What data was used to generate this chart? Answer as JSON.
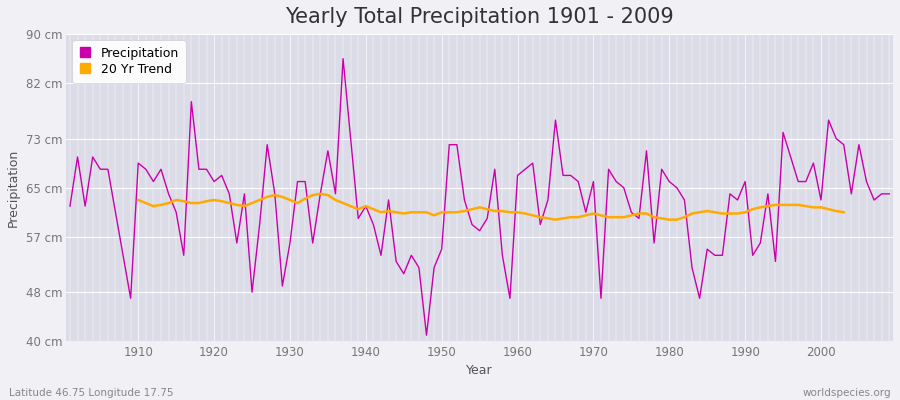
{
  "title": "Yearly Total Precipitation 1901 - 2009",
  "xlabel": "Year",
  "ylabel": "Precipitation",
  "subtitle_left": "Latitude 46.75 Longitude 17.75",
  "subtitle_right": "worldspecies.org",
  "years": [
    1901,
    1902,
    1903,
    1904,
    1905,
    1906,
    1907,
    1908,
    1909,
    1910,
    1911,
    1912,
    1913,
    1914,
    1915,
    1916,
    1917,
    1918,
    1919,
    1920,
    1921,
    1922,
    1923,
    1924,
    1925,
    1926,
    1927,
    1928,
    1929,
    1930,
    1931,
    1932,
    1933,
    1934,
    1935,
    1936,
    1937,
    1938,
    1939,
    1940,
    1941,
    1942,
    1943,
    1944,
    1945,
    1946,
    1947,
    1948,
    1949,
    1950,
    1951,
    1952,
    1953,
    1954,
    1955,
    1956,
    1957,
    1958,
    1959,
    1960,
    1961,
    1962,
    1963,
    1964,
    1965,
    1966,
    1967,
    1968,
    1969,
    1970,
    1971,
    1972,
    1973,
    1974,
    1975,
    1976,
    1977,
    1978,
    1979,
    1980,
    1981,
    1982,
    1983,
    1984,
    1985,
    1986,
    1987,
    1988,
    1989,
    1990,
    1991,
    1992,
    1993,
    1994,
    1995,
    1996,
    1997,
    1998,
    1999,
    2000,
    2001,
    2002,
    2003,
    2004,
    2005,
    2006,
    2007,
    2008,
    2009
  ],
  "precip": [
    62,
    70,
    62,
    70,
    68,
    68,
    61,
    54,
    47,
    69,
    68,
    66,
    68,
    64,
    61,
    54,
    79,
    68,
    68,
    66,
    67,
    64,
    56,
    64,
    48,
    59,
    72,
    64,
    49,
    56,
    66,
    66,
    56,
    64,
    71,
    64,
    86,
    73,
    60,
    62,
    59,
    54,
    63,
    53,
    51,
    54,
    52,
    41,
    52,
    55,
    72,
    72,
    63,
    59,
    58,
    60,
    68,
    54,
    47,
    67,
    68,
    69,
    59,
    63,
    76,
    67,
    67,
    66,
    61,
    66,
    47,
    68,
    66,
    65,
    61,
    60,
    71,
    56,
    68,
    66,
    65,
    63,
    52,
    47,
    55,
    54,
    54,
    64,
    63,
    66,
    54,
    56,
    64,
    53,
    74,
    70,
    66,
    66,
    69,
    63,
    76,
    73,
    72,
    64,
    72,
    66,
    63,
    64,
    64
  ],
  "trend": [
    null,
    null,
    null,
    null,
    null,
    null,
    null,
    null,
    null,
    63.0,
    62.5,
    62.0,
    62.2,
    62.5,
    63.0,
    62.8,
    62.5,
    62.5,
    62.8,
    63.0,
    62.8,
    62.5,
    62.2,
    62.0,
    62.5,
    63.0,
    63.5,
    63.8,
    63.5,
    63.0,
    62.5,
    63.2,
    63.8,
    64.0,
    63.8,
    63.0,
    62.5,
    62.0,
    61.5,
    62.0,
    61.5,
    61.0,
    61.2,
    61.0,
    60.8,
    61.0,
    61.0,
    61.0,
    60.5,
    61.0,
    61.0,
    61.0,
    61.2,
    61.5,
    61.8,
    61.5,
    61.2,
    61.2,
    61.0,
    61.0,
    60.8,
    60.5,
    60.2,
    60.0,
    59.8,
    60.0,
    60.2,
    60.2,
    60.5,
    60.8,
    60.5,
    60.2,
    60.2,
    60.2,
    60.5,
    60.8,
    60.8,
    60.2,
    60.0,
    59.8,
    59.8,
    60.2,
    60.8,
    61.0,
    61.2,
    61.0,
    60.8,
    60.8,
    60.8,
    61.0,
    61.5,
    61.8,
    62.0,
    62.2,
    62.2,
    62.2,
    62.2,
    62.0,
    61.8,
    61.8,
    61.5,
    61.2,
    61.0
  ],
  "precip_color": "#cc00aa",
  "trend_color": "#ffaa00",
  "bg_color": "#f0f0f5",
  "plot_bg_color": "#dcdce8",
  "grid_color": "#ffffff",
  "ylim": [
    40,
    90
  ],
  "ytick_labels": [
    "40 cm",
    "48 cm",
    "57 cm",
    "65 cm",
    "73 cm",
    "82 cm",
    "90 cm"
  ],
  "ytick_values": [
    40,
    48,
    57,
    65,
    73,
    82,
    90
  ],
  "legend_precip": "Precipitation",
  "legend_trend": "20 Yr Trend",
  "title_fontsize": 15,
  "label_fontsize": 9,
  "tick_fontsize": 8.5
}
